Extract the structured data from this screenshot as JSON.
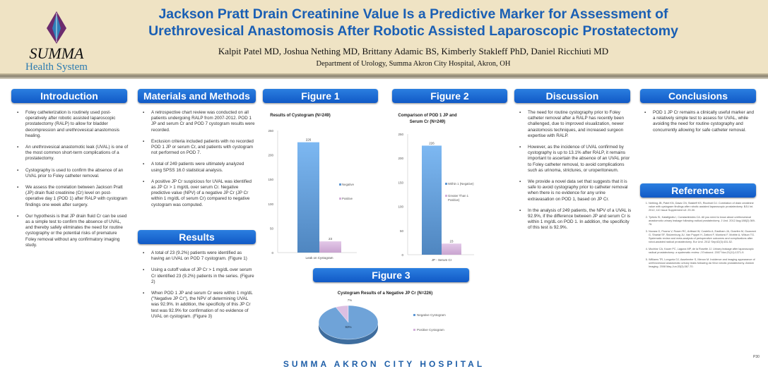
{
  "header": {
    "title_line1": "Jackson Pratt Drain Creatinine Value Is a Predictive Marker for Assessment of",
    "title_line2": "Urethrovesical Anastomosis After Robotic Assisted Laparoscopic Prostatectomy",
    "authors": "Kalpit Patel MD, Joshua Nething MD, Brittany Adamic BS, Kimberly Stakleff PhD, Daniel Ricchiuti MD",
    "department": "Department of Urology, Summa Akron City Hospital, Akron, OH",
    "logo_line1": "SUMMA",
    "logo_line2": "Health System"
  },
  "introduction": {
    "heading": "Introduction",
    "bullets": [
      "Foley catheterization is routinely used post-operatively after robotic assisted laparoscopic prostatectomy (RALP) to allow for bladder decompression and urethrovesical anastomosis healing.",
      "An urethrovesical anastomotic leak (UVAL) is one of the most common short-term complications of a prostatectomy.",
      "Cystography is used to confirm the absence of an UVAL prior to Foley catheter removal.",
      "We assess the correlation between Jackson Pratt (JP) drain fluid creatinine (Cr) level on post-operative day 1 (POD 1) after RALP with cystogram findings one week after surgery.",
      "Our hypothesis is that JP drain fluid Cr can be used as a simple test to confirm the absence of UVAL, and thereby safely eliminates the need for routine cystography or the potential risks of premature Foley removal without any confirmatory imaging study."
    ]
  },
  "methods": {
    "heading": "Materials and Methods",
    "bullets": [
      "A retrospective chart review was conducted on all patients undergoing RALP from 2007-2012. POD 1 JP and serum Cr and POD 7 cystogram results were recorded.",
      "Exclusion criteria included patients with no recorded POD 1 JP or serum Cr, and patients with cystogram not performed on POD 7.",
      "A total of 249 patients were ultimately analyzed using SPSS 16.0 statistical analysis.",
      "A positive JP Cr suspicious for UVAL was identified as JP Cr > 1 mg/dL over serum Cr. Negative predictive value (NPV) of a negative JP Cr (JP Cr within 1 mg/dL of serum Cr) compared to negative cystogram was computed."
    ]
  },
  "results": {
    "heading": "Results",
    "bullets": [
      "A total of 23 (9.2%) patients were identified as having an UVAL on POD 7 cystogram. (Figure 1)",
      "Using a cutoff value of JP Cr > 1 mg/dL over serum Cr identified 23 (9.2%) patients in the series. (Figure 2)",
      "When POD 1 JP and serum Cr were within 1 mg/dL (\"Negative JP Cr\"), the NPV of determining UVAL was 92.9%. In addition, the specificity of this JP Cr test was 92.9% for confirmation of no evidence of UVAL on cystogram. (Figure 3)"
    ]
  },
  "figure1": {
    "heading": "Figure 1"
  },
  "figure2": {
    "heading": "Figure 2"
  },
  "figure3": {
    "heading": "Figure 3"
  },
  "discussion": {
    "heading": "Discussion",
    "bullets": [
      "The need for routine cystography prior to Foley catheter removal after a RALP has recently been challenged, due to improved visualization, newer anastomosis techniques, and increased surgeon expertise with RALP.",
      "However, as the incidence of UVAL confirmed by cystography is up to 13.1% after RALP, it remains important to ascertain the absence of an UVAL prior to Foley catheter removal, to avoid complications such as urinoma, strictures, or uroperitoneum.",
      "We provide a novel data set that suggests that it is safe to avoid cystography prior to catheter removal when there is no evidence for any urine extravasation on POD 1, based on JP Cr.",
      "In the analysis of 249 patients, the NPV of a UVAL is 92.9%, if the difference between JP and serum Cr is within 1 mg/dL on POD 1. In addition, the specificity of this test is 92.9%."
    ]
  },
  "conclusions": {
    "heading": "Conclusions",
    "bullets": [
      "POD 1 JP Cr remains a clinically useful marker and a relatively simple test to assess for UVAL, while avoiding the need for routine cystography and concurrently allowing for safe catheter removal."
    ]
  },
  "references": {
    "heading": "References",
    "items": [
      "Nething JB, Patel KN, Daws CN, Stakleff KS, Ricchiuti DJ. Correlation of drain creatinine value with cystogram findings after robotic assisted laparoscopic prostatectomy. BJU Int. 2012; 110 Issue Supplement s3: 29-30.",
      "Tyritzis SI, Katafigiotis I, Constantinides CA. All you need to know about urethrovesical anastomotic urinary leakage following radical prostatectomy. J Urol. 2012 Aug;188(2):369-76.",
      "Novara G, Ficarra V, Rosen RC, Artibani W, Costello A, Eastham JA, Graefen M, Guazzoni G, Shariat SF, Stolzenburg JU, Van Poppel H, Zattoni F, Montorsi F, Mottrie A, Wilson TG. Systematic review and meta-analysis of perioperative outcomes and complications after robot-assisted radical prostatectomy. Eur Urol. 2012 Sep;62(3):431-52.",
      "Mochtar CA, Kauer PC, Laguna MP, de la Rosette JJ. Urinary leakage after laparoscopic radical prostatectomy: a systematic review. J Endourol. 2007 Nov;21(11):1371-9.",
      "Williams TR, Longoria OJ, Asselmeier S, Menon M. Incidence and imaging appearance of urethrovesical anastomotic urinary leaks following da Vinci robotic prostatectomy. Abdom Imaging. 2008 May-Jun;33(3):367-70."
    ]
  },
  "footer": {
    "hospital": "SUMMA AKRON CITY HOSPITAL",
    "poster_number": "P30"
  },
  "colors": {
    "accent": "#1a5fb4",
    "negative": "#6fa6e0",
    "positive": "#d9b8de"
  },
  "chart_data": [
    {
      "type": "bar",
      "title": "Results of Cystogram (N=249)",
      "categories": [
        "Leak on Cystogram"
      ],
      "series": [
        {
          "name": "Negative",
          "values": [
            226
          ]
        },
        {
          "name": "Positive",
          "values": [
            23
          ]
        }
      ],
      "yticks": [
        "0",
        "50",
        "100",
        "150",
        "200",
        "250"
      ],
      "ylim": [
        0,
        250
      ],
      "legend": "right"
    },
    {
      "type": "bar",
      "title": [
        "Comparison of POD 1 JP and",
        "Serum Cr (N=249)"
      ],
      "categories": [
        "JP - Serum Cr"
      ],
      "series": [
        {
          "name": "Within 1 (Negative)",
          "values": [
            226
          ]
        },
        {
          "name": "Greater Than 1 (Positive)",
          "values": [
            23
          ]
        }
      ],
      "yticks": [
        "0",
        "50",
        "100",
        "150",
        "200",
        "250"
      ],
      "ylim": [
        0,
        250
      ],
      "legend": "right"
    },
    {
      "type": "pie",
      "title": "Cystogram Results of a Negative JP Cr (N=226)",
      "labels": [
        "Negative Cystogram",
        "Positive Cystogram"
      ],
      "values": [
        93,
        7
      ],
      "value_labels": [
        "93%",
        "7%"
      ],
      "legend": "right"
    }
  ]
}
